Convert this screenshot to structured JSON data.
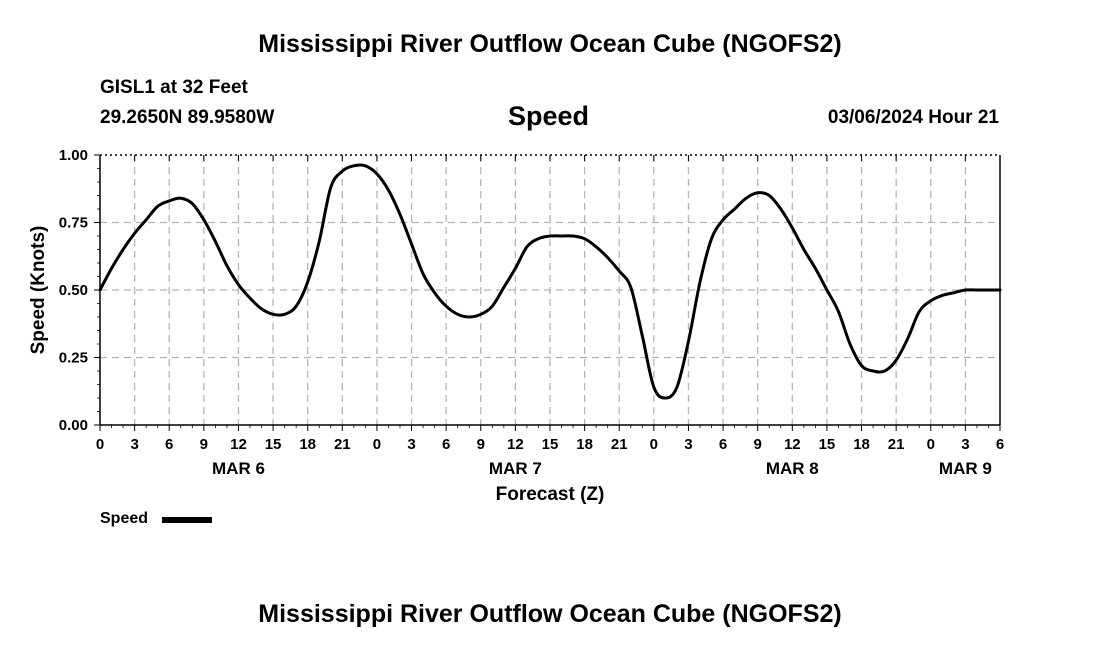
{
  "page": {
    "title_top": "Mississippi River Outflow Ocean Cube (NGOFS2)",
    "title_bottom": "Mississippi River Outflow Ocean Cube (NGOFS2)",
    "station": "GISL1 at 32 Feet",
    "coords": "29.2650N  89.9580W",
    "chart_heading": "Speed",
    "timestamp": "03/06/2024 Hour 21",
    "legend_label": "Speed"
  },
  "chart_data": {
    "type": "line",
    "title": "Speed",
    "xlabel": "Forecast (Z)",
    "ylabel": "Speed (Knots)",
    "ylim": [
      0,
      1
    ],
    "xlim": [
      0,
      78
    ],
    "x_unit": "hours since 2024-03-06 00Z",
    "grid": true,
    "x_tick_labels": [
      "0",
      "3",
      "6",
      "9",
      "12",
      "15",
      "18",
      "21",
      "0",
      "3",
      "6",
      "9",
      "12",
      "15",
      "18",
      "21",
      "0",
      "3",
      "6",
      "9",
      "12",
      "15",
      "18",
      "21",
      "0",
      "3",
      "6"
    ],
    "date_labels": [
      {
        "label": "MAR 6",
        "hour": 12
      },
      {
        "label": "MAR 7",
        "hour": 36
      },
      {
        "label": "MAR 8",
        "hour": 60
      },
      {
        "label": "MAR 9",
        "hour": 75
      }
    ],
    "y_ticks": [
      {
        "label": "0.00",
        "value": 0
      },
      {
        "label": "0.25",
        "value": 0.25
      },
      {
        "label": "0.50",
        "value": 0.5
      },
      {
        "label": "0.75",
        "value": 0.75
      },
      {
        "label": "1.00",
        "value": 1.0
      }
    ],
    "series": [
      {
        "name": "Speed",
        "color": "#000000",
        "x": [
          0,
          1,
          2,
          3,
          4,
          5,
          6,
          7,
          8,
          9,
          10,
          11,
          12,
          13,
          14,
          15,
          16,
          17,
          18,
          19,
          20,
          21,
          22,
          23,
          24,
          25,
          26,
          27,
          28,
          29,
          30,
          31,
          32,
          33,
          34,
          35,
          36,
          37,
          38,
          39,
          40,
          41,
          42,
          43,
          44,
          45,
          46,
          47,
          48,
          49,
          50,
          51,
          52,
          53,
          54,
          55,
          56,
          57,
          58,
          59,
          60,
          61,
          62,
          63,
          64,
          65,
          66,
          67,
          68,
          69,
          70,
          71,
          72,
          73,
          74,
          75,
          76,
          77,
          78
        ],
        "values": [
          0.5,
          0.58,
          0.65,
          0.71,
          0.76,
          0.81,
          0.83,
          0.84,
          0.82,
          0.76,
          0.68,
          0.59,
          0.52,
          0.47,
          0.43,
          0.41,
          0.41,
          0.44,
          0.53,
          0.68,
          0.88,
          0.94,
          0.96,
          0.96,
          0.93,
          0.87,
          0.78,
          0.67,
          0.56,
          0.49,
          0.44,
          0.41,
          0.4,
          0.41,
          0.44,
          0.51,
          0.58,
          0.66,
          0.69,
          0.7,
          0.7,
          0.7,
          0.69,
          0.66,
          0.62,
          0.57,
          0.51,
          0.33,
          0.14,
          0.1,
          0.14,
          0.31,
          0.53,
          0.69,
          0.76,
          0.8,
          0.84,
          0.86,
          0.85,
          0.8,
          0.73,
          0.65,
          0.58,
          0.5,
          0.42,
          0.3,
          0.22,
          0.2,
          0.2,
          0.24,
          0.32,
          0.42,
          0.46,
          0.48,
          0.49,
          0.5,
          0.5,
          0.5,
          0.5
        ]
      }
    ]
  }
}
